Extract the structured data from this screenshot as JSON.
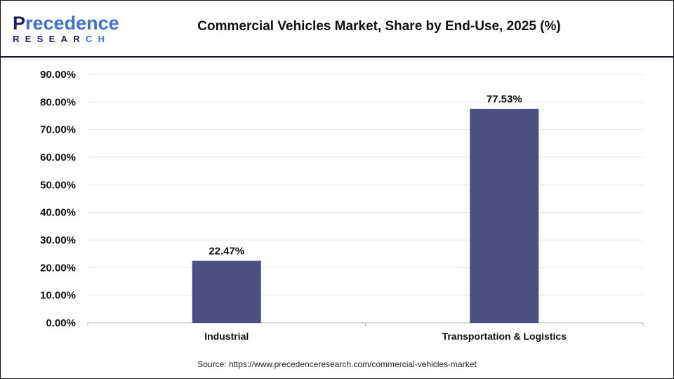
{
  "logo": {
    "text_main": "Precedence",
    "text_sub": "RESEARCH"
  },
  "title": "Commercial Vehicles Market, Share by End-Use, 2025 (%)",
  "source": "Source: https://www.precedenceresearch.com/commercial-vehicles-market",
  "chart_data": {
    "type": "bar",
    "title": "Commercial Vehicles Market, Share by End-Use, 2025 (%)",
    "categories": [
      "Industrial",
      "Transportation & Logistics"
    ],
    "values": [
      22.47,
      77.53
    ],
    "data_labels": [
      "22.47%",
      "77.53%"
    ],
    "ylim": [
      0,
      90
    ],
    "yticks": [
      "0.00%",
      "10.00%",
      "20.00%",
      "30.00%",
      "40.00%",
      "50.00%",
      "60.00%",
      "70.00%",
      "80.00%",
      "90.00%"
    ],
    "grid": true,
    "bar_color": "#4b4f82",
    "xlabel": "",
    "ylabel": ""
  }
}
